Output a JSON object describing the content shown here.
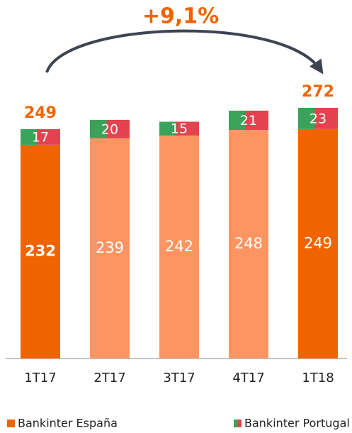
{
  "chart_data": {
    "type": "stacked-bar",
    "annotation": "+9,1%",
    "categories": [
      "1T17",
      "2T17",
      "3T17",
      "4T17",
      "1T18"
    ],
    "series": [
      {
        "name": "Bankinter España",
        "color": "#f06400",
        "colors": [
          "#f06400",
          "#fd9563",
          "#fd9563",
          "#fd9563",
          "#f06400"
        ],
        "values": [
          232,
          239,
          242,
          248,
          249
        ]
      },
      {
        "name": "Bankinter Portugal",
        "colors": [
          "#3aa35a",
          "#e2434f"
        ],
        "values": [
          17,
          20,
          15,
          21,
          23
        ]
      }
    ],
    "totals": [
      249,
      null,
      null,
      null,
      272
    ],
    "total_color": "#f06400"
  }
}
